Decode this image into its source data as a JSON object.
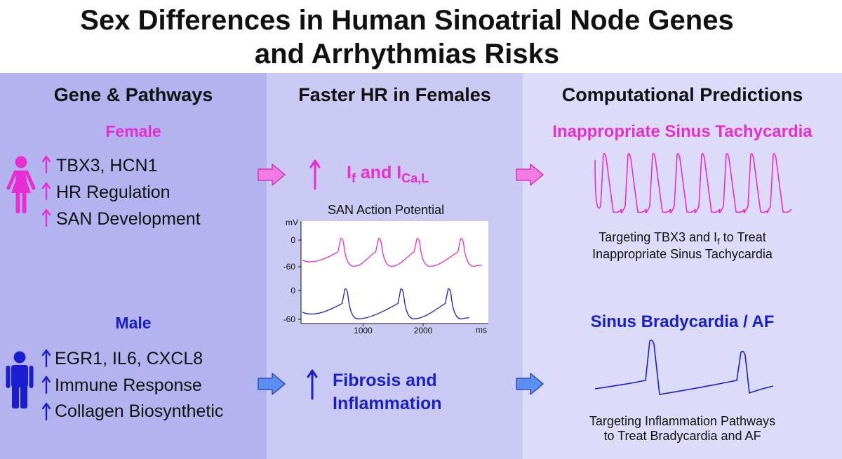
{
  "colors": {
    "female": "#e62ed2",
    "male": "#1b1ed0",
    "female_arrow": "#f47be2",
    "male_arrow": "#5b8ff2"
  },
  "title": {
    "line1": "Sex Differences in Human Sinoatrial Node Genes",
    "line2": "and Arrhythmias Risks"
  },
  "col1": {
    "header": "Gene & Pathways",
    "female": {
      "label": "Female",
      "icon": "female-person-icon",
      "items": [
        "TBX3, HCN1",
        "HR Regulation",
        "SAN Development"
      ]
    },
    "male": {
      "label": "Male",
      "icon": "male-person-icon",
      "items": [
        "EGR1, IL6, CXCL8",
        "Immune Response",
        "Collagen Biosynthetic"
      ]
    }
  },
  "col2": {
    "header": "Faster HR in Females",
    "female_effect": {
      "main1": "I",
      "sub1": "f",
      "mid": " and I",
      "sub2": "Ca,L"
    },
    "chart_title": "SAN Action Potential",
    "chart_data": {
      "type": "line",
      "title": "SAN Action Potential",
      "xlabel": "ms",
      "ylabel": "mV",
      "x_ticks": [
        "1000",
        "2000"
      ],
      "y_ticks": [
        "0",
        "-60"
      ],
      "series": [
        {
          "color": "#e62ed2",
          "peaks_ms": [
            650,
            1280,
            1920,
            2650
          ]
        },
        {
          "color": "#1b1ed0",
          "peaks_ms": [
            720,
            1650,
            2440
          ]
        }
      ],
      "ylim": [
        -60,
        0
      ]
    },
    "male_effect": {
      "line1": "Fibrosis and",
      "line2": "Inflammation"
    }
  },
  "col3": {
    "header": "Computational Predictions",
    "female_title": "Inappropriate Sinus Tachycardia",
    "female_text": {
      "line1": "Targeting TBX3 and I",
      "sub": "f",
      "line1_end": " to Treat",
      "line2": "Inappropriate Sinus Tachycardia"
    },
    "male_title": "Sinus Bradycardia / AF",
    "male_text": {
      "line1": "Targeting Inflammation Pathways",
      "line2": "to Treat Bradycardia and AF"
    }
  }
}
